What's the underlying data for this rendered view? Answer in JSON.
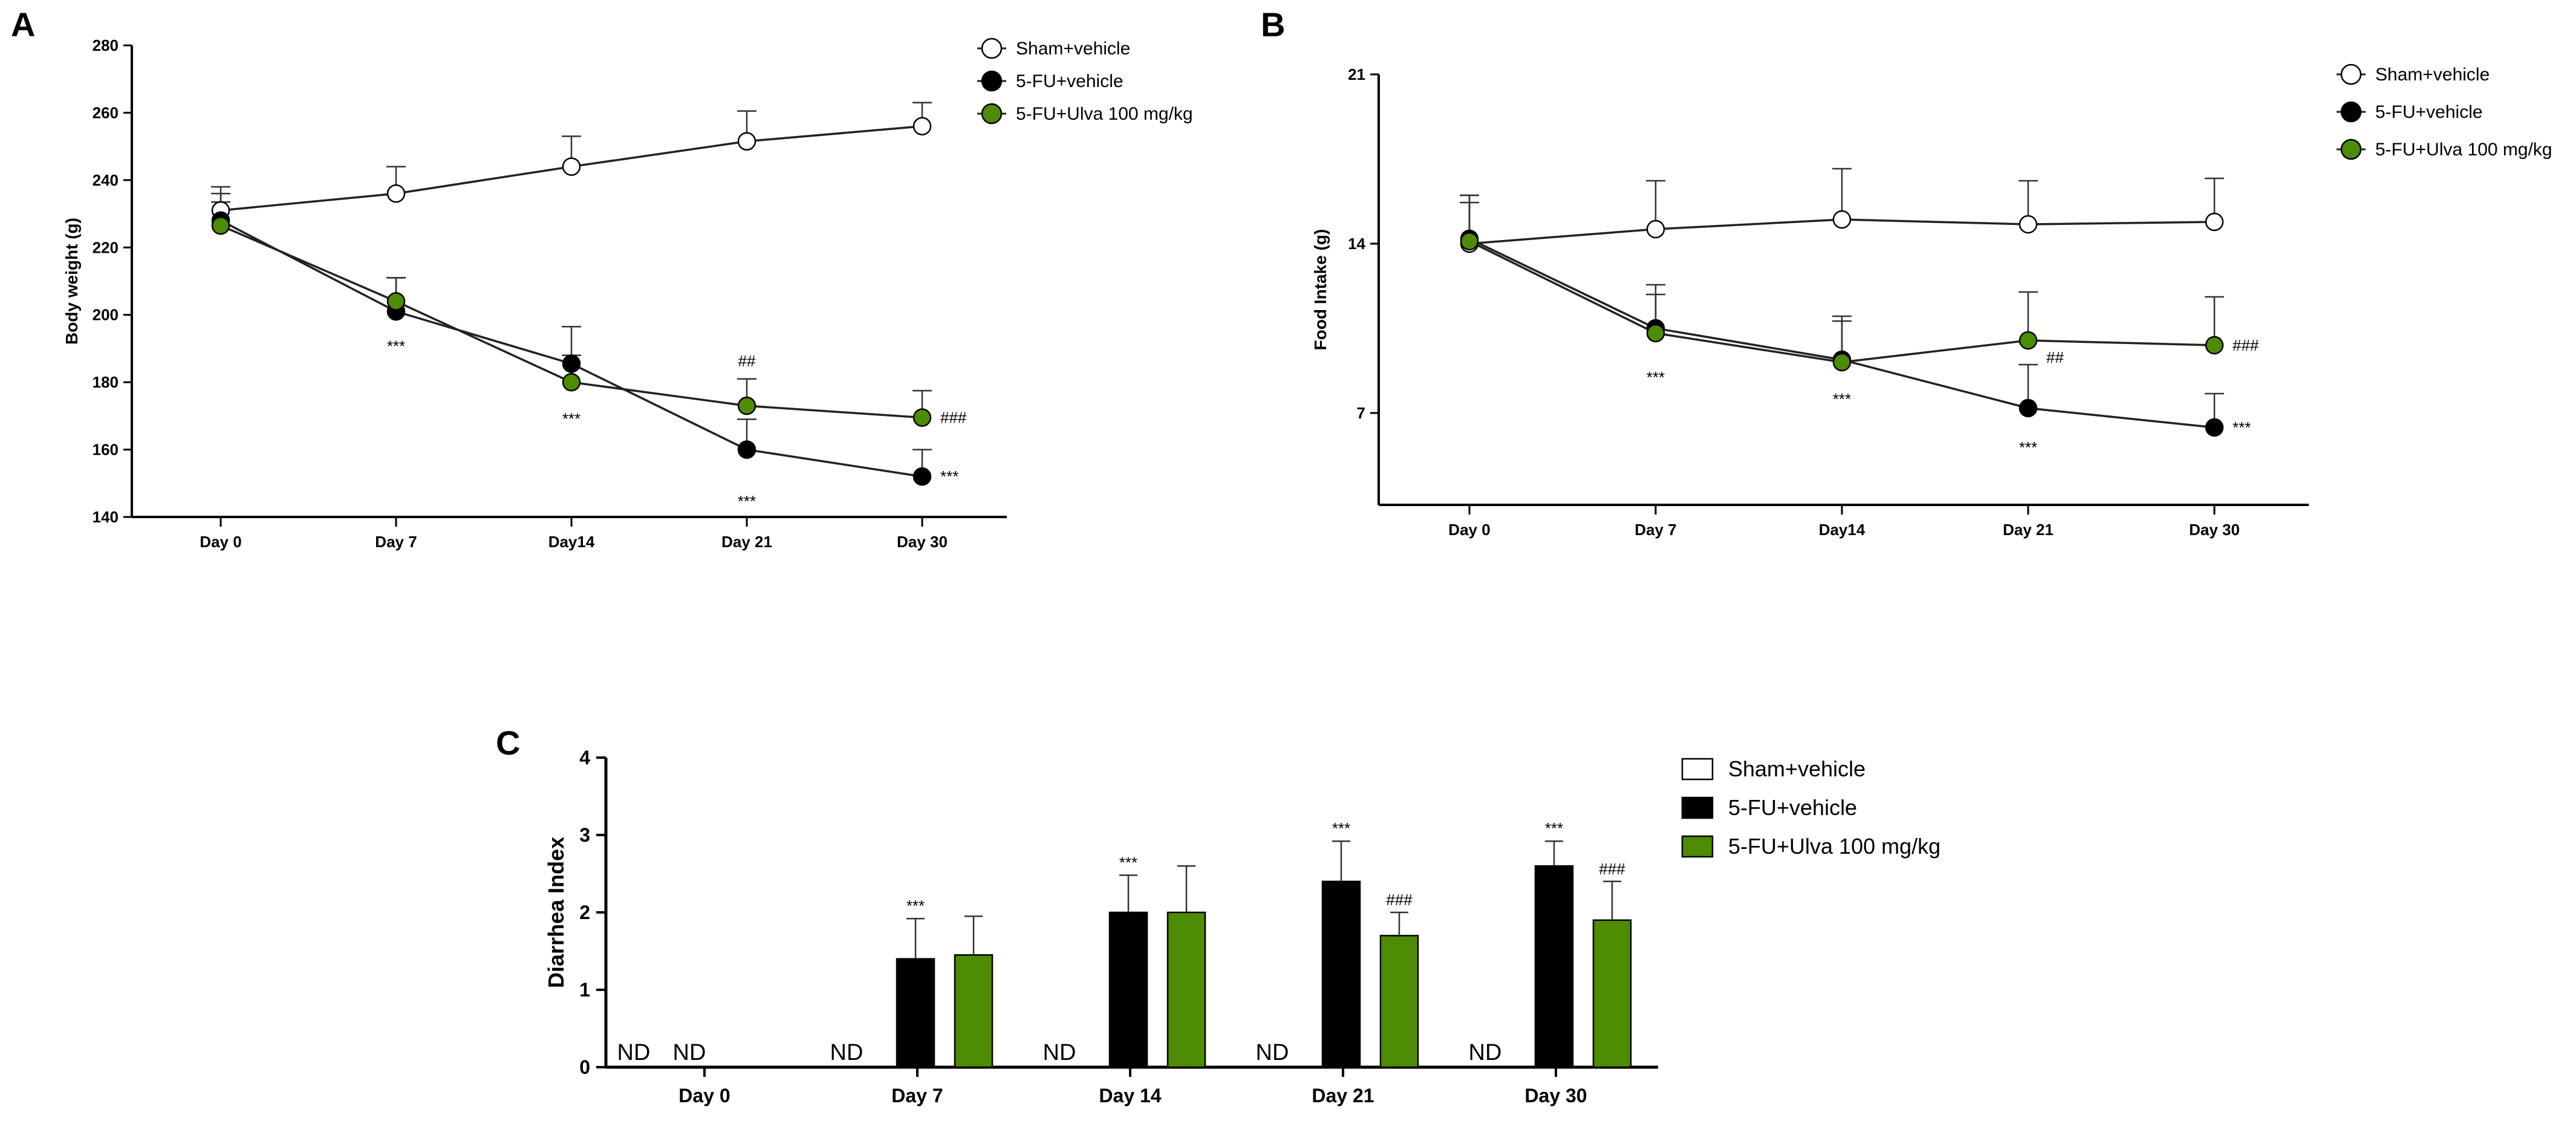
{
  "colors": {
    "sham": "#ffffff",
    "fu": "#000000",
    "ulva": "#4d8c00",
    "axis": "#000000"
  },
  "chart_data": [
    {
      "panel": "A",
      "type": "line",
      "title": "",
      "xlabel": "",
      "ylabel": "Body weight (g)",
      "categories": [
        "Day 0",
        "Day 7",
        "Day14",
        "Day 21",
        "Day 30"
      ],
      "ylim": [
        140,
        280
      ],
      "yticks": [
        140,
        160,
        180,
        200,
        220,
        240,
        260,
        280
      ],
      "legend_position": "top-right",
      "series": [
        {
          "name": "Sham+vehicle",
          "key": "sham",
          "values": [
            231,
            236,
            244,
            251.5,
            256
          ],
          "errors": [
            7,
            8,
            9,
            9,
            7
          ]
        },
        {
          "name": "5-FU+vehicle",
          "key": "fu",
          "values": [
            228,
            201,
            185.5,
            160,
            152
          ],
          "errors": [
            8,
            10,
            11,
            9,
            8
          ]
        },
        {
          "name": "5-FU+Ulva 100 mg/kg",
          "key": "ulva",
          "values": [
            226.5,
            204,
            180,
            173,
            169.5
          ],
          "errors": [
            7,
            7,
            8,
            8,
            8
          ]
        }
      ],
      "annotations": [
        {
          "text": "***",
          "cat": 1,
          "value": 193,
          "pos": "below"
        },
        {
          "text": "***",
          "cat": 2,
          "value": 171.5,
          "pos": "below"
        },
        {
          "text": "***",
          "cat": 3,
          "value": 147,
          "pos": "below"
        },
        {
          "text": "***",
          "cat": 4,
          "value": 152,
          "pos": "right"
        },
        {
          "text": "##",
          "cat": 3,
          "value": 184,
          "pos": "above"
        },
        {
          "text": "###",
          "cat": 4,
          "value": 169.5,
          "pos": "right"
        }
      ]
    },
    {
      "panel": "B",
      "type": "line",
      "title": "",
      "xlabel": "",
      "ylabel": "Food Intake (g)",
      "categories": [
        "Day 0",
        "Day 7",
        "Day14",
        "Day 21",
        "Day 30"
      ],
      "ylim": [
        3.2,
        21
      ],
      "yticks": [
        7,
        14,
        21
      ],
      "legend_position": "top-right",
      "series": [
        {
          "name": "Sham+vehicle",
          "key": "sham",
          "values": [
            14,
            14.6,
            15,
            14.8,
            14.9
          ],
          "errors": [
            2,
            2,
            2.1,
            1.8,
            1.8
          ]
        },
        {
          "name": "5-FU+vehicle",
          "key": "fu",
          "values": [
            14.2,
            10.5,
            9.2,
            7.2,
            6.4
          ],
          "errors": [
            1.8,
            1.8,
            1.8,
            1.8,
            1.4
          ]
        },
        {
          "name": "5-FU+Ulva 100 mg/kg",
          "key": "ulva",
          "values": [
            14.1,
            10.3,
            9.1,
            10,
            9.8
          ],
          "errors": [
            1.6,
            1.6,
            1.7,
            2,
            2
          ]
        }
      ],
      "annotations": [
        {
          "text": "***",
          "cat": 1,
          "value": 8.8,
          "pos": "below"
        },
        {
          "text": "***",
          "cat": 2,
          "value": 7.9,
          "pos": "below"
        },
        {
          "text": "***",
          "cat": 3,
          "value": 5.9,
          "pos": "below"
        },
        {
          "text": "***",
          "cat": 4,
          "value": 6.4,
          "pos": "right"
        },
        {
          "text": "##",
          "cat": 3,
          "value": 9.3,
          "pos": "right"
        },
        {
          "text": "###",
          "cat": 4,
          "value": 9.8,
          "pos": "right"
        }
      ]
    },
    {
      "panel": "C",
      "type": "bar",
      "title": "",
      "xlabel": "",
      "ylabel": "Diarrhea Index",
      "categories": [
        "Day 0",
        "Day 7",
        "Day 14",
        "Day 21",
        "Day 30"
      ],
      "ylim": [
        0,
        4
      ],
      "yticks": [
        0,
        1,
        2,
        3,
        4
      ],
      "legend_position": "right",
      "nd_label": "ND",
      "series": [
        {
          "name": "Sham+vehicle",
          "key": "sham",
          "values": [
            0,
            0,
            0,
            0,
            0
          ],
          "errors": [
            0,
            0,
            0,
            0,
            0
          ],
          "labels": [
            "ND",
            "ND",
            "ND",
            "ND",
            "ND"
          ]
        },
        {
          "name": "5-FU+vehicle",
          "key": "fu",
          "values": [
            0,
            1.4,
            2,
            2.4,
            2.6
          ],
          "errors": [
            0,
            0.52,
            0.48,
            0.52,
            0.32
          ],
          "labels": [
            "ND",
            "",
            "",
            "",
            ""
          ]
        },
        {
          "name": "5-FU+Ulva 100 mg/kg",
          "key": "ulva",
          "values": [
            0,
            1.45,
            2,
            1.7,
            1.9
          ],
          "errors": [
            0,
            0.5,
            0.6,
            0.3,
            0.5
          ],
          "labels": [
            "",
            "",
            "",
            "",
            ""
          ]
        }
      ],
      "annotations": [
        {
          "text": "***",
          "cat": 1,
          "series": 1
        },
        {
          "text": "***",
          "cat": 2,
          "series": 1
        },
        {
          "text": "***",
          "cat": 3,
          "series": 1
        },
        {
          "text": "***",
          "cat": 4,
          "series": 1
        },
        {
          "text": "###",
          "cat": 3,
          "series": 2
        },
        {
          "text": "###",
          "cat": 4,
          "series": 2
        }
      ]
    }
  ]
}
